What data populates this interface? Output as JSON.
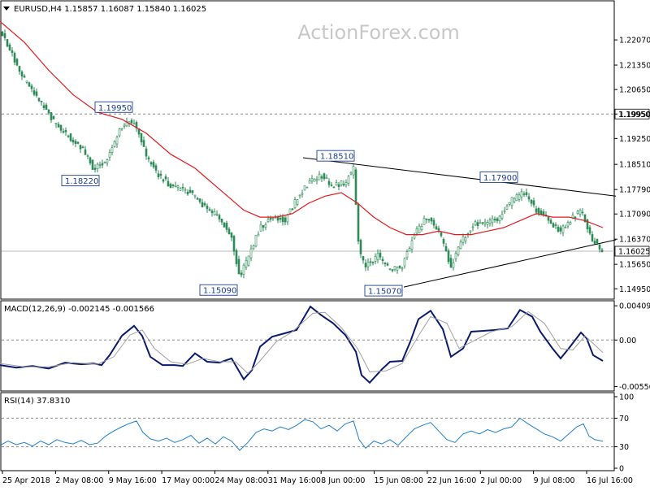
{
  "header": {
    "symbol_line": "EURUSD,H4  1.15857 1.16087 1.15840 1.16025",
    "watermark": "ActionForex.com"
  },
  "colors": {
    "candle": "#2e8b57",
    "ma": "#e31a1c",
    "trendline": "#000000",
    "macd": "#0a1a6e",
    "signal": "#a0a0a0",
    "rsi": "#1e7fd0",
    "grid_dash": "#888888"
  },
  "chart_data": [
    {
      "type": "candlestick",
      "title": "EURUSD,H4",
      "ohlc_last": {
        "open": 1.15857,
        "high": 1.16087,
        "low": 1.1584,
        "close": 1.16025
      },
      "x_ticks": [
        "25 Apr 2018",
        "2 May 08:00",
        "9 May 16:00",
        "17 May 00:00",
        "24 May 08:00",
        "31 May 16:00",
        "8 Jun 00:00",
        "15 Jun 08:00",
        "22 Jun 16:00",
        "2 Jul 00:00",
        "9 Jul 08:00",
        "16 Jul 16:00"
      ],
      "y_ticks": [
        1.2207,
        1.2135,
        1.2065,
        1.1995,
        1.1925,
        1.1851,
        1.1779,
        1.1709,
        1.1637,
        1.1565,
        1.1495
      ],
      "ylim": [
        1.147,
        1.227
      ],
      "horizontal_level": 1.1995,
      "current_price": 1.16025,
      "annotations": [
        {
          "text": "1.19950",
          "value": 1.1995
        },
        {
          "text": "1.18220",
          "value": 1.1822
        },
        {
          "text": "1.18510",
          "value": 1.1851
        },
        {
          "text": "1.17900",
          "value": 1.179
        },
        {
          "text": "1.15090",
          "value": 1.1509
        },
        {
          "text": "1.15070",
          "value": 1.1507
        }
      ],
      "close_path": [
        [
          0,
          1.2235
        ],
        [
          12,
          1.218
        ],
        [
          25,
          1.211
        ],
        [
          40,
          1.206
        ],
        [
          55,
          1.201
        ],
        [
          70,
          1.196
        ],
        [
          85,
          1.193
        ],
        [
          100,
          1.19
        ],
        [
          115,
          1.184
        ],
        [
          125,
          1.185
        ],
        [
          135,
          1.188
        ],
        [
          145,
          1.194
        ],
        [
          160,
          1.198
        ],
        [
          170,
          1.195
        ],
        [
          180,
          1.187
        ],
        [
          195,
          1.182
        ],
        [
          210,
          1.179
        ],
        [
          225,
          1.178
        ],
        [
          240,
          1.176
        ],
        [
          255,
          1.172
        ],
        [
          270,
          1.17
        ],
        [
          285,
          1.164
        ],
        [
          295,
          1.153
        ],
        [
          305,
          1.158
        ],
        [
          320,
          1.167
        ],
        [
          335,
          1.17
        ],
        [
          350,
          1.169
        ],
        [
          365,
          1.175
        ],
        [
          380,
          1.18
        ],
        [
          395,
          1.182
        ],
        [
          410,
          1.179
        ],
        [
          425,
          1.18
        ],
        [
          435,
          1.184
        ],
        [
          442,
          1.16
        ],
        [
          450,
          1.156
        ],
        [
          465,
          1.159
        ],
        [
          480,
          1.155
        ],
        [
          495,
          1.156
        ],
        [
          510,
          1.165
        ],
        [
          525,
          1.17
        ],
        [
          540,
          1.166
        ],
        [
          555,
          1.156
        ],
        [
          570,
          1.164
        ],
        [
          585,
          1.168
        ],
        [
          600,
          1.168
        ],
        [
          615,
          1.17
        ],
        [
          630,
          1.175
        ],
        [
          645,
          1.177
        ],
        [
          660,
          1.172
        ],
        [
          675,
          1.169
        ],
        [
          690,
          1.166
        ],
        [
          705,
          1.17
        ],
        [
          715,
          1.172
        ],
        [
          725,
          1.165
        ],
        [
          735,
          1.162
        ],
        [
          742,
          1.16
        ]
      ],
      "ma_path": [
        [
          0,
          1.226
        ],
        [
          30,
          1.22
        ],
        [
          60,
          1.212
        ],
        [
          90,
          1.205
        ],
        [
          120,
          1.2
        ],
        [
          150,
          1.198
        ],
        [
          180,
          1.194
        ],
        [
          210,
          1.188
        ],
        [
          240,
          1.184
        ],
        [
          270,
          1.178
        ],
        [
          300,
          1.172
        ],
        [
          320,
          1.17
        ],
        [
          340,
          1.17
        ],
        [
          360,
          1.171
        ],
        [
          380,
          1.174
        ],
        [
          400,
          1.176
        ],
        [
          420,
          1.177
        ],
        [
          440,
          1.174
        ],
        [
          460,
          1.17
        ],
        [
          480,
          1.167
        ],
        [
          500,
          1.165
        ],
        [
          520,
          1.165
        ],
        [
          540,
          1.166
        ],
        [
          560,
          1.165
        ],
        [
          580,
          1.165
        ],
        [
          600,
          1.166
        ],
        [
          620,
          1.167
        ],
        [
          640,
          1.169
        ],
        [
          660,
          1.171
        ],
        [
          680,
          1.17
        ],
        [
          700,
          1.17
        ],
        [
          720,
          1.169
        ],
        [
          742,
          1.167
        ]
      ],
      "trendlines": [
        {
          "name": "upper",
          "from": [
            373,
            1.187
          ],
          "to": [
            758,
            1.176
          ]
        },
        {
          "name": "lower",
          "from": [
            497,
            1.15
          ],
          "to": [
            758,
            1.1635
          ]
        }
      ]
    },
    {
      "type": "line",
      "title": "MACD(12,26,9) -0.002145 -0.001566",
      "y_ticks": [
        0.004094,
        0.0,
        -0.005568
      ],
      "y_tick_labels": [
        "0.004094",
        "0.00",
        "-0.005568"
      ],
      "ylim": [
        -0.006,
        0.0045
      ],
      "series": [
        {
          "role": "macd",
          "points": [
            [
              0,
              -0.003
            ],
            [
              20,
              -0.0033
            ],
            [
              40,
              -0.0031
            ],
            [
              60,
              -0.0034
            ],
            [
              80,
              -0.0027
            ],
            [
              100,
              -0.0029
            ],
            [
              115,
              -0.0028
            ],
            [
              125,
              -0.003
            ],
            [
              135,
              -0.0018
            ],
            [
              150,
              0.0005
            ],
            [
              165,
              0.0017
            ],
            [
              175,
              0.0005
            ],
            [
              185,
              -0.002
            ],
            [
              200,
              -0.003
            ],
            [
              215,
              -0.003
            ],
            [
              225,
              -0.0031
            ],
            [
              240,
              -0.0016
            ],
            [
              255,
              -0.0026
            ],
            [
              270,
              -0.0027
            ],
            [
              285,
              -0.0022
            ],
            [
              300,
              -0.0047
            ],
            [
              310,
              -0.0036
            ],
            [
              320,
              -0.0008
            ],
            [
              335,
              0.0004
            ],
            [
              350,
              0.0008
            ],
            [
              365,
              0.0012
            ],
            [
              382,
              0.004
            ],
            [
              395,
              0.003
            ],
            [
              410,
              0.002
            ],
            [
              425,
              0.0006
            ],
            [
              438,
              -0.0014
            ],
            [
              445,
              -0.0042
            ],
            [
              455,
              -0.0051
            ],
            [
              470,
              -0.0035
            ],
            [
              480,
              -0.0026
            ],
            [
              495,
              -0.0025
            ],
            [
              505,
              -0.0002
            ],
            [
              515,
              0.0025
            ],
            [
              530,
              0.0035
            ],
            [
              545,
              0.0013
            ],
            [
              555,
              -0.002
            ],
            [
              570,
              -0.001
            ],
            [
              580,
              0.001
            ],
            [
              595,
              0.0011
            ],
            [
              610,
              0.0012
            ],
            [
              625,
              0.0014
            ],
            [
              640,
              0.0036
            ],
            [
              655,
              0.0028
            ],
            [
              665,
              0.001
            ],
            [
              680,
              -0.001
            ],
            [
              690,
              -0.0022
            ],
            [
              700,
              -0.001
            ],
            [
              715,
              0.0009
            ],
            [
              722,
              0.0002
            ],
            [
              730,
              -0.0018
            ],
            [
              742,
              -0.0025
            ]
          ]
        },
        {
          "role": "signal",
          "points": [
            [
              0,
              -0.0028
            ],
            [
              30,
              -0.0032
            ],
            [
              60,
              -0.0032
            ],
            [
              90,
              -0.0027
            ],
            [
              120,
              -0.0029
            ],
            [
              140,
              -0.002
            ],
            [
              160,
              0.0006
            ],
            [
              175,
              0.0012
            ],
            [
              190,
              -0.001
            ],
            [
              210,
              -0.0026
            ],
            [
              230,
              -0.0029
            ],
            [
              250,
              -0.0022
            ],
            [
              270,
              -0.0026
            ],
            [
              290,
              -0.0026
            ],
            [
              305,
              -0.004
            ],
            [
              320,
              -0.0025
            ],
            [
              340,
              -0.0002
            ],
            [
              360,
              0.001
            ],
            [
              385,
              0.0032
            ],
            [
              400,
              0.0033
            ],
            [
              420,
              0.0015
            ],
            [
              440,
              -0.001
            ],
            [
              455,
              -0.0038
            ],
            [
              475,
              -0.0037
            ],
            [
              495,
              -0.0028
            ],
            [
              515,
              0.0005
            ],
            [
              530,
              0.0028
            ],
            [
              550,
              0.002
            ],
            [
              565,
              -0.001
            ],
            [
              585,
              0.0
            ],
            [
              605,
              0.001
            ],
            [
              630,
              0.0016
            ],
            [
              650,
              0.0034
            ],
            [
              670,
              0.002
            ],
            [
              690,
              -0.001
            ],
            [
              705,
              -0.0012
            ],
            [
              720,
              0.0005
            ],
            [
              742,
              -0.0015
            ]
          ]
        }
      ]
    },
    {
      "type": "line",
      "title": "RSI(14) 37.8310",
      "y_ticks": [
        100,
        70,
        30,
        0
      ],
      "y_tick_labels": [
        "100",
        "70",
        "30",
        "0"
      ],
      "levels": [
        70,
        30
      ],
      "ylim": [
        0,
        100
      ],
      "series": [
        {
          "role": "rsi",
          "points": [
            [
              0,
              32
            ],
            [
              10,
              38
            ],
            [
              20,
              33
            ],
            [
              30,
              36
            ],
            [
              40,
              31
            ],
            [
              50,
              38
            ],
            [
              60,
              33
            ],
            [
              70,
              40
            ],
            [
              80,
              36
            ],
            [
              90,
              34
            ],
            [
              100,
              39
            ],
            [
              110,
              33
            ],
            [
              120,
              35
            ],
            [
              130,
              45
            ],
            [
              140,
              52
            ],
            [
              150,
              58
            ],
            [
              160,
              63
            ],
            [
              168,
              66
            ],
            [
              176,
              50
            ],
            [
              185,
              41
            ],
            [
              195,
              38
            ],
            [
              205,
              42
            ],
            [
              215,
              36
            ],
            [
              225,
              40
            ],
            [
              235,
              46
            ],
            [
              245,
              35
            ],
            [
              255,
              42
            ],
            [
              265,
              34
            ],
            [
              275,
              44
            ],
            [
              285,
              38
            ],
            [
              295,
              25
            ],
            [
              305,
              36
            ],
            [
              315,
              50
            ],
            [
              325,
              55
            ],
            [
              335,
              52
            ],
            [
              345,
              58
            ],
            [
              355,
              54
            ],
            [
              365,
              60
            ],
            [
              375,
              68
            ],
            [
              385,
              65
            ],
            [
              395,
              55
            ],
            [
              405,
              60
            ],
            [
              415,
              52
            ],
            [
              425,
              62
            ],
            [
              435,
              66
            ],
            [
              442,
              40
            ],
            [
              450,
              28
            ],
            [
              460,
              38
            ],
            [
              470,
              34
            ],
            [
              480,
              40
            ],
            [
              490,
              32
            ],
            [
              500,
              44
            ],
            [
              510,
              55
            ],
            [
              520,
              60
            ],
            [
              530,
              64
            ],
            [
              540,
              52
            ],
            [
              550,
              40
            ],
            [
              560,
              36
            ],
            [
              570,
              48
            ],
            [
              580,
              52
            ],
            [
              590,
              48
            ],
            [
              600,
              54
            ],
            [
              610,
              50
            ],
            [
              620,
              55
            ],
            [
              630,
              58
            ],
            [
              640,
              70
            ],
            [
              650,
              62
            ],
            [
              660,
              55
            ],
            [
              670,
              48
            ],
            [
              680,
              44
            ],
            [
              690,
              38
            ],
            [
              700,
              48
            ],
            [
              710,
              58
            ],
            [
              718,
              62
            ],
            [
              725,
              45
            ],
            [
              732,
              40
            ],
            [
              742,
              37.83
            ]
          ]
        }
      ]
    }
  ]
}
